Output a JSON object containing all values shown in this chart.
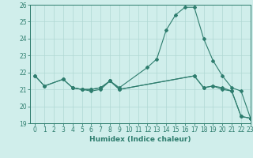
{
  "xlabel": "Humidex (Indice chaleur)",
  "series": {
    "curve1_x": [
      0,
      1,
      3,
      4,
      5,
      6,
      7,
      8,
      9,
      12,
      13,
      14,
      15,
      16,
      17,
      18,
      19,
      20,
      21,
      22,
      23
    ],
    "curve1_y": [
      21.8,
      21.2,
      21.6,
      21.1,
      21.0,
      20.9,
      21.0,
      21.5,
      21.1,
      22.3,
      22.8,
      24.5,
      25.4,
      25.85,
      25.85,
      24.0,
      22.7,
      21.8,
      21.1,
      20.9,
      19.3
    ],
    "curve2_x": [
      0,
      1,
      3,
      4,
      5,
      6,
      7,
      8,
      9,
      17,
      18,
      19,
      20,
      21,
      22,
      23
    ],
    "curve2_y": [
      21.8,
      21.2,
      21.6,
      21.1,
      21.0,
      21.0,
      21.1,
      21.5,
      21.0,
      21.8,
      21.1,
      21.2,
      21.1,
      20.9,
      19.4,
      19.3
    ],
    "curve3_x": [
      4,
      5,
      6,
      7,
      8,
      9,
      17,
      18,
      19,
      20,
      21,
      22,
      23
    ],
    "curve3_y": [
      21.1,
      21.0,
      21.0,
      21.1,
      21.5,
      21.0,
      21.8,
      21.1,
      21.2,
      21.0,
      20.9,
      19.4,
      19.3
    ]
  },
  "color": "#2e7d6e",
  "bg_color": "#d0eeeb",
  "grid_color": "#b0d8d4",
  "ylim": [
    19,
    26
  ],
  "xlim": [
    -0.5,
    23
  ],
  "yticks": [
    19,
    20,
    21,
    22,
    23,
    24,
    25,
    26
  ],
  "xticks": [
    0,
    1,
    2,
    3,
    4,
    5,
    6,
    7,
    8,
    9,
    10,
    11,
    12,
    13,
    14,
    15,
    16,
    17,
    18,
    19,
    20,
    21,
    22,
    23
  ],
  "tick_fontsize": 5.5,
  "xlabel_fontsize": 6.5
}
